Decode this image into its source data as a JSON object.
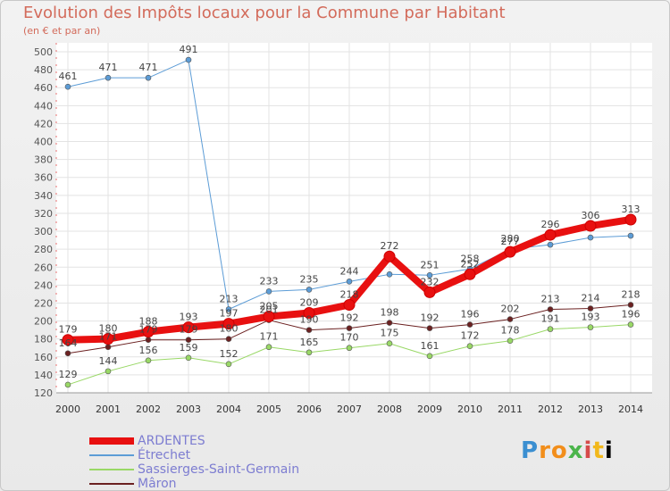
{
  "title": "Evolution des Impôts locaux pour la Commune par Habitant",
  "subtitle": "(en € et par an)",
  "logo": "Proxiti",
  "chart_data": {
    "type": "line",
    "x": [
      "2000",
      "2001",
      "2002",
      "2003",
      "2004",
      "2005",
      "2006",
      "2007",
      "2008",
      "2009",
      "2010",
      "2011",
      "2012",
      "2013",
      "2014"
    ],
    "ylim": [
      120,
      500
    ],
    "yticks": [
      120,
      140,
      160,
      180,
      200,
      220,
      240,
      260,
      280,
      300,
      320,
      340,
      360,
      380,
      400,
      420,
      440,
      460,
      480,
      500
    ],
    "grid": true,
    "legend_position": "bottom-left",
    "series": [
      {
        "name": "Mâron",
        "color": "#6b2121",
        "width": 1,
        "values": [
          164,
          171,
          179,
          179,
          180,
          201,
          190,
          192,
          198,
          192,
          196,
          202,
          213,
          214,
          218
        ],
        "labels": [
          "164",
          "171",
          "179",
          "179",
          "180",
          "201",
          "190",
          "192",
          "198",
          "192",
          "196",
          "202",
          "213",
          "214",
          "218"
        ]
      },
      {
        "name": "Sassierges-Saint-Germain",
        "color": "#99d866",
        "width": 1,
        "values": [
          129,
          144,
          156,
          159,
          152,
          171,
          165,
          170,
          175,
          161,
          172,
          178,
          191,
          193,
          196
        ],
        "labels": [
          "129",
          "144",
          "156",
          "159",
          "152",
          "171",
          "165",
          "170",
          "175",
          "161",
          "172",
          "178",
          "191",
          "193",
          "196"
        ]
      },
      {
        "name": "Étrechet",
        "color": "#5c9cd6",
        "width": 1,
        "values": [
          461,
          471,
          471,
          491,
          213,
          233,
          235,
          244,
          252,
          251,
          258,
          280,
          285,
          293,
          295
        ],
        "labels": [
          "461",
          "471",
          "471",
          "491",
          "213",
          "233",
          "235",
          "244",
          "",
          "251",
          "258",
          "280",
          "",
          "",
          ""
        ]
      },
      {
        "name": "ARDENTES",
        "color": "#e81010",
        "width": 8,
        "values": [
          179,
          180,
          188,
          193,
          197,
          205,
          209,
          218,
          272,
          232,
          252,
          277,
          296,
          306,
          313
        ],
        "labels": [
          "179",
          "180",
          "188",
          "193",
          "197",
          "205",
          "209",
          "218",
          "272",
          "232",
          "252",
          "277",
          "296",
          "306",
          "313"
        ]
      }
    ]
  },
  "legend": [
    {
      "name": "ARDENTES",
      "color": "#e81010",
      "width": 8
    },
    {
      "name": "Étrechet",
      "color": "#5c9cd6",
      "width": 2
    },
    {
      "name": "Sassierges-Saint-Germain",
      "color": "#99d866",
      "width": 2
    },
    {
      "name": "Mâron",
      "color": "#6b2121",
      "width": 2
    }
  ]
}
